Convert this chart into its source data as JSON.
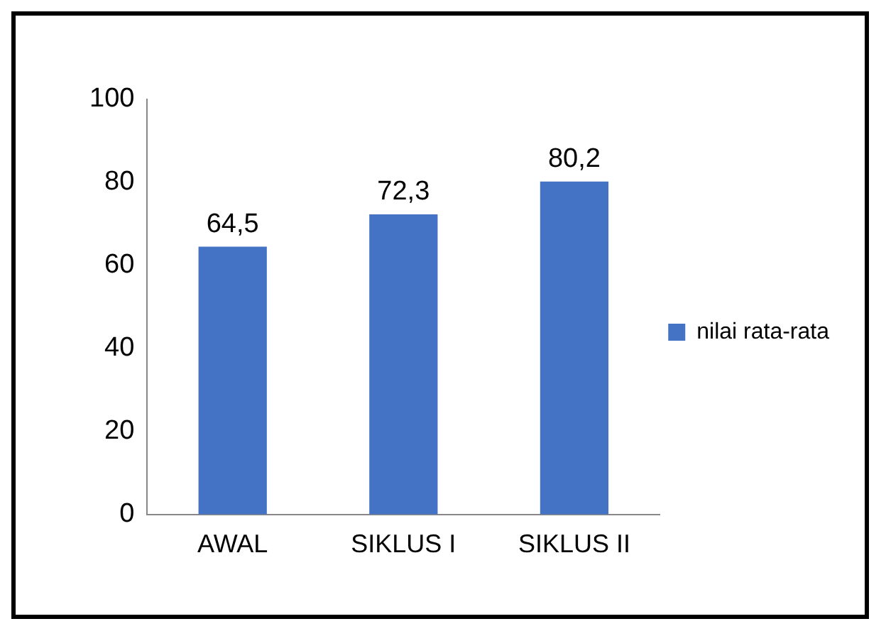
{
  "chart_data": {
    "type": "bar",
    "categories": [
      "AWAL",
      "SIKLUS I",
      "SIKLUS II"
    ],
    "series": [
      {
        "name": "nilai rata-rata",
        "color": "#4472c4",
        "values": [
          64.5,
          72.3,
          80.2
        ],
        "value_labels": [
          "64,5",
          "72,3",
          "80,2"
        ]
      }
    ],
    "ylim": [
      0,
      100
    ],
    "yticks": [
      0,
      20,
      40,
      60,
      80,
      100
    ],
    "grid": false,
    "legend": "right"
  }
}
